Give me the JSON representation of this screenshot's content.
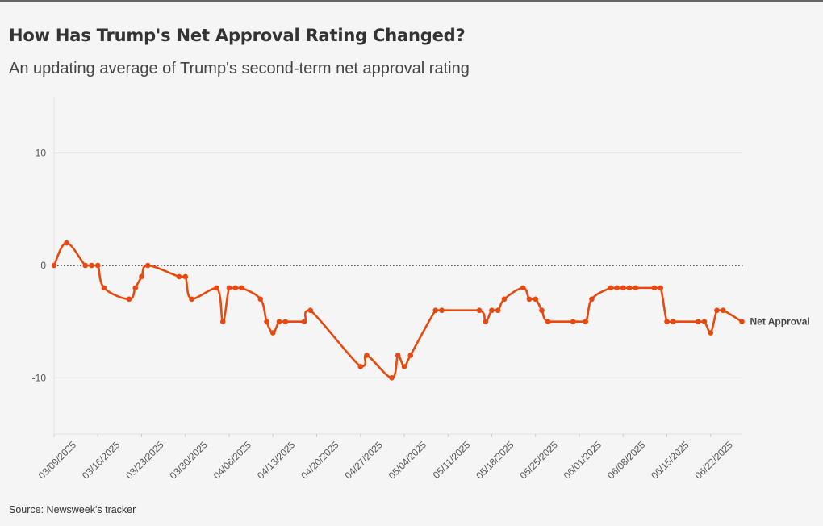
{
  "page": {
    "title": "How Has Trump's Net Approval Rating Changed?",
    "subtitle": "An updating average of Trump's second-term net approval rating",
    "source": "Source: Newsweek's tracker"
  },
  "chart_data": {
    "type": "line",
    "title": "How Has Trump's Net Approval Rating Changed?",
    "subtitle": "An updating average of Trump's second-term net approval rating",
    "xlabel": "",
    "ylabel": "",
    "ylim": [
      -15,
      15
    ],
    "xlim": [
      "2025-03-09",
      "2025-06-25"
    ],
    "yticks": [
      10,
      0,
      -10
    ],
    "yticks_labels": [
      "10",
      "0",
      "-10"
    ],
    "xticks": [
      "2025-03-09",
      "2025-03-16",
      "2025-03-23",
      "2025-03-30",
      "2025-04-06",
      "2025-04-13",
      "2025-04-20",
      "2025-04-27",
      "2025-05-04",
      "2025-05-11",
      "2025-05-18",
      "2025-05-25",
      "2025-06-01",
      "2025-06-08",
      "2025-06-15",
      "2025-06-22"
    ],
    "xtick_labels": [
      "03/09/2025",
      "03/16/2025",
      "03/23/2025",
      "03/30/2025",
      "04/06/2025",
      "04/13/2025",
      "04/20/2025",
      "04/27/2025",
      "05/04/2025",
      "05/11/2025",
      "05/18/2025",
      "05/25/2025",
      "06/01/2025",
      "06/08/2025",
      "06/15/2025",
      "06/22/2025"
    ],
    "grid": true,
    "zero_line": "dotted",
    "legend": "none",
    "series": [
      {
        "name": "Net Approval",
        "color": "#e8490f",
        "end_label": "Net Approval",
        "points": [
          {
            "x": "2025-03-09",
            "y": 0
          },
          {
            "x": "2025-03-11",
            "y": 2
          },
          {
            "x": "2025-03-14",
            "y": 0
          },
          {
            "x": "2025-03-15",
            "y": 0
          },
          {
            "x": "2025-03-16",
            "y": 0
          },
          {
            "x": "2025-03-17",
            "y": -2
          },
          {
            "x": "2025-03-21",
            "y": -3
          },
          {
            "x": "2025-03-22",
            "y": -2
          },
          {
            "x": "2025-03-23",
            "y": -1
          },
          {
            "x": "2025-03-24",
            "y": 0
          },
          {
            "x": "2025-03-29",
            "y": -1
          },
          {
            "x": "2025-03-30",
            "y": -1
          },
          {
            "x": "2025-03-31",
            "y": -3
          },
          {
            "x": "2025-04-04",
            "y": -2
          },
          {
            "x": "2025-04-05",
            "y": -5
          },
          {
            "x": "2025-04-06",
            "y": -2
          },
          {
            "x": "2025-04-07",
            "y": -2
          },
          {
            "x": "2025-04-08",
            "y": -2
          },
          {
            "x": "2025-04-11",
            "y": -3
          },
          {
            "x": "2025-04-12",
            "y": -5
          },
          {
            "x": "2025-04-13",
            "y": -6
          },
          {
            "x": "2025-04-14",
            "y": -5
          },
          {
            "x": "2025-04-15",
            "y": -5
          },
          {
            "x": "2025-04-18",
            "y": -5
          },
          {
            "x": "2025-04-19",
            "y": -4
          },
          {
            "x": "2025-04-27",
            "y": -9
          },
          {
            "x": "2025-04-28",
            "y": -8
          },
          {
            "x": "2025-05-02",
            "y": -10
          },
          {
            "x": "2025-05-03",
            "y": -8
          },
          {
            "x": "2025-05-04",
            "y": -9
          },
          {
            "x": "2025-05-05",
            "y": -8
          },
          {
            "x": "2025-05-09",
            "y": -4
          },
          {
            "x": "2025-05-10",
            "y": -4
          },
          {
            "x": "2025-05-16",
            "y": -4
          },
          {
            "x": "2025-05-17",
            "y": -5
          },
          {
            "x": "2025-05-18",
            "y": -4
          },
          {
            "x": "2025-05-19",
            "y": -4
          },
          {
            "x": "2025-05-20",
            "y": -3
          },
          {
            "x": "2025-05-23",
            "y": -2
          },
          {
            "x": "2025-05-24",
            "y": -3
          },
          {
            "x": "2025-05-25",
            "y": -3
          },
          {
            "x": "2025-05-26",
            "y": -4
          },
          {
            "x": "2025-05-27",
            "y": -5
          },
          {
            "x": "2025-05-31",
            "y": -5
          },
          {
            "x": "2025-06-02",
            "y": -5
          },
          {
            "x": "2025-06-03",
            "y": -3
          },
          {
            "x": "2025-06-06",
            "y": -2
          },
          {
            "x": "2025-06-07",
            "y": -2
          },
          {
            "x": "2025-06-08",
            "y": -2
          },
          {
            "x": "2025-06-09",
            "y": -2
          },
          {
            "x": "2025-06-10",
            "y": -2
          },
          {
            "x": "2025-06-13",
            "y": -2
          },
          {
            "x": "2025-06-14",
            "y": -2
          },
          {
            "x": "2025-06-15",
            "y": -5
          },
          {
            "x": "2025-06-16",
            "y": -5
          },
          {
            "x": "2025-06-20",
            "y": -5
          },
          {
            "x": "2025-06-21",
            "y": -5
          },
          {
            "x": "2025-06-22",
            "y": -6
          },
          {
            "x": "2025-06-23",
            "y": -4
          },
          {
            "x": "2025-06-24",
            "y": -4
          },
          {
            "x": "2025-06-27",
            "y": -5
          }
        ]
      }
    ]
  }
}
